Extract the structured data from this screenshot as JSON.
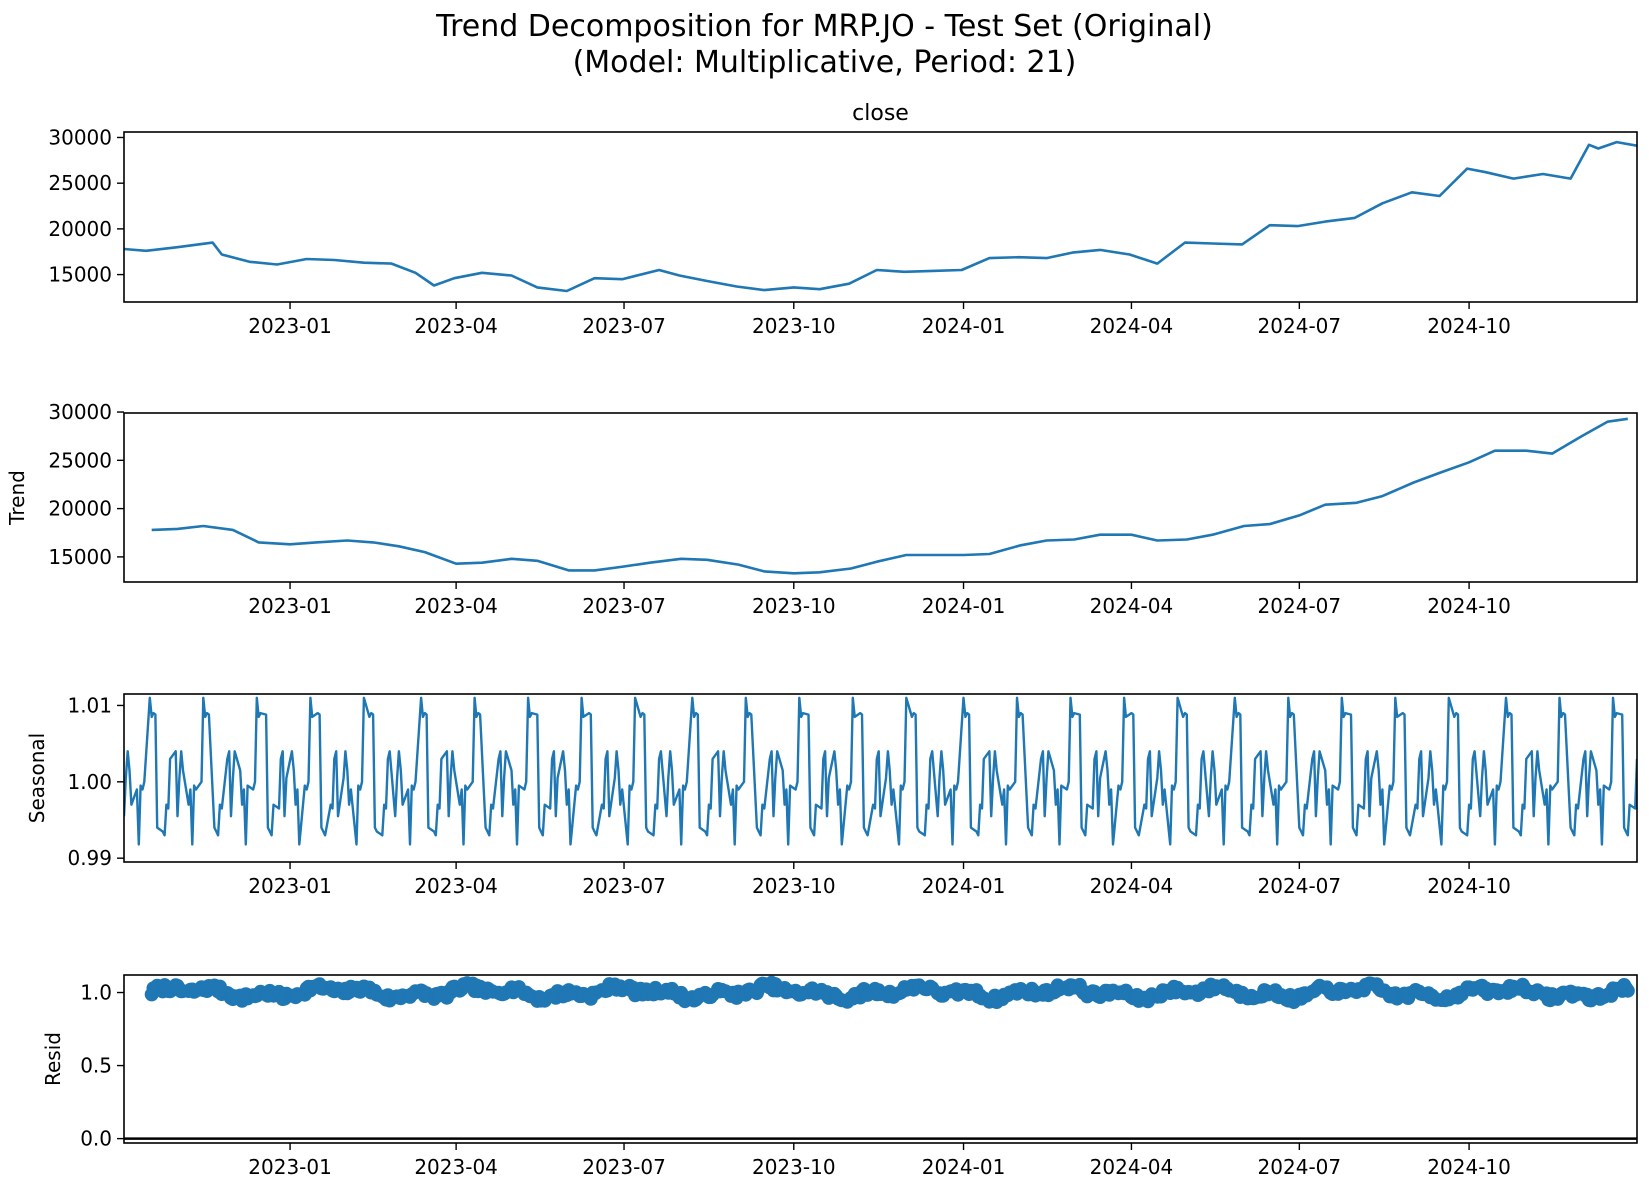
{
  "figure": {
    "title_line1": "Trend Decomposition for MRP.JO - Test Set (Original)",
    "title_line2": "(Model: Multiplicative, Period: 21)"
  },
  "chart_data": [
    {
      "type": "line",
      "panel": "observed",
      "title": "close",
      "xlabel": "",
      "ylabel": "",
      "x_ticks": [
        "2023-01",
        "2023-04",
        "2023-07",
        "2023-10",
        "2024-01",
        "2024-04",
        "2024-07",
        "2024-10"
      ],
      "y_ticks": [
        15000,
        20000,
        25000,
        30000
      ],
      "xlim": [
        "2022-10-03",
        "2024-12-31"
      ],
      "ylim": [
        12000,
        30600
      ],
      "color": "#1f77b4",
      "x": [
        "2022-10-03",
        "2022-10-15",
        "2022-11-01",
        "2022-11-20",
        "2022-11-25",
        "2022-12-10",
        "2022-12-25",
        "2023-01-10",
        "2023-01-25",
        "2023-02-10",
        "2023-02-25",
        "2023-03-10",
        "2023-03-20",
        "2023-03-31",
        "2023-04-15",
        "2023-05-01",
        "2023-05-15",
        "2023-05-31",
        "2023-06-15",
        "2023-06-30",
        "2023-07-20",
        "2023-07-31",
        "2023-08-15",
        "2023-08-31",
        "2023-09-15",
        "2023-10-01",
        "2023-10-15",
        "2023-10-31",
        "2023-11-15",
        "2023-11-30",
        "2023-12-15",
        "2023-12-31",
        "2024-01-15",
        "2024-01-31",
        "2024-02-15",
        "2024-02-29",
        "2024-03-15",
        "2024-03-31",
        "2024-04-15",
        "2024-04-30",
        "2024-05-15",
        "2024-05-31",
        "2024-06-15",
        "2024-06-30",
        "2024-07-15",
        "2024-07-31",
        "2024-08-15",
        "2024-08-31",
        "2024-09-15",
        "2024-09-30",
        "2024-10-10",
        "2024-10-25",
        "2024-11-10",
        "2024-11-25",
        "2024-12-05",
        "2024-12-10",
        "2024-12-20",
        "2024-12-31"
      ],
      "y": [
        17800,
        17600,
        18000,
        18500,
        17200,
        16400,
        16100,
        16700,
        16600,
        16300,
        16200,
        15200,
        13800,
        14600,
        15200,
        14900,
        13600,
        13200,
        14600,
        14500,
        15500,
        14900,
        14300,
        13700,
        13300,
        13600,
        13400,
        14000,
        15500,
        15300,
        15400,
        15500,
        16800,
        16900,
        16800,
        17400,
        17700,
        17200,
        16200,
        18500,
        18400,
        18300,
        20400,
        20300,
        20800,
        21200,
        22800,
        24000,
        23600,
        26600,
        26200,
        25500,
        26000,
        25500,
        29200,
        28800,
        29500,
        29100
      ]
    },
    {
      "type": "line",
      "panel": "trend",
      "title": "",
      "xlabel": "",
      "ylabel": "Trend",
      "x_ticks": [
        "2023-01",
        "2023-04",
        "2023-07",
        "2023-10",
        "2024-01",
        "2024-04",
        "2024-07",
        "2024-10"
      ],
      "y_ticks": [
        15000,
        20000,
        25000,
        30000
      ],
      "xlim": [
        "2022-10-03",
        "2024-12-31"
      ],
      "ylim": [
        12400,
        29900
      ],
      "color": "#1f77b4",
      "x": [
        "2022-10-18",
        "2022-11-01",
        "2022-11-15",
        "2022-12-01",
        "2022-12-15",
        "2023-01-01",
        "2023-01-15",
        "2023-02-01",
        "2023-02-15",
        "2023-03-01",
        "2023-03-15",
        "2023-04-01",
        "2023-04-15",
        "2023-05-01",
        "2023-05-15",
        "2023-06-01",
        "2023-06-15",
        "2023-07-01",
        "2023-07-15",
        "2023-08-01",
        "2023-08-15",
        "2023-09-01",
        "2023-09-15",
        "2023-10-01",
        "2023-10-15",
        "2023-11-01",
        "2023-11-15",
        "2023-12-01",
        "2023-12-15",
        "2024-01-01",
        "2024-01-15",
        "2024-02-01",
        "2024-02-15",
        "2024-03-01",
        "2024-03-15",
        "2024-04-01",
        "2024-04-15",
        "2024-05-01",
        "2024-05-15",
        "2024-06-01",
        "2024-06-15",
        "2024-07-01",
        "2024-07-15",
        "2024-08-01",
        "2024-08-15",
        "2024-09-01",
        "2024-09-15",
        "2024-10-01",
        "2024-10-15",
        "2024-11-01",
        "2024-11-15",
        "2024-12-01",
        "2024-12-15",
        "2024-12-26"
      ],
      "y": [
        17800,
        17900,
        18200,
        17800,
        16500,
        16300,
        16500,
        16700,
        16500,
        16100,
        15500,
        14300,
        14400,
        14800,
        14600,
        13600,
        13600,
        14000,
        14400,
        14800,
        14700,
        14200,
        13500,
        13300,
        13400,
        13800,
        14500,
        15200,
        15200,
        15200,
        15300,
        16200,
        16700,
        16800,
        17300,
        17300,
        16700,
        16800,
        17300,
        18200,
        18400,
        19300,
        20400,
        20600,
        21300,
        22700,
        23700,
        24800,
        26000,
        26000,
        25700,
        27500,
        29000,
        29300
      ]
    },
    {
      "type": "line",
      "panel": "seasonal",
      "title": "",
      "xlabel": "",
      "ylabel": "Seasonal",
      "x_ticks": [
        "2023-01",
        "2023-04",
        "2023-07",
        "2023-10",
        "2024-01",
        "2024-04",
        "2024-07",
        "2024-10"
      ],
      "y_ticks": [
        0.99,
        1.0,
        1.01
      ],
      "y_tick_labels": [
        "0.99",
        "1.00",
        "1.01"
      ],
      "xlim": [
        "2022-10-03",
        "2024-12-31"
      ],
      "ylim": [
        0.9895,
        1.0115
      ],
      "period_trading_days": 21,
      "start": "2022-10-03",
      "end": "2024-12-31",
      "color": "#1f77b4",
      "one_period": [
        0.9955,
        1.0005,
        1.004,
        1.0015,
        0.997,
        0.999,
        0.9918,
        0.9995,
        0.999,
        1.0,
        1.011,
        1.0085,
        1.009,
        1.0088,
        0.994,
        0.9935,
        0.993,
        0.997,
        0.9965,
        1.003,
        1.004
      ]
    },
    {
      "type": "scatter",
      "panel": "resid",
      "title": "",
      "xlabel": "",
      "ylabel": "Resid",
      "x_ticks": [
        "2023-01",
        "2023-04",
        "2023-07",
        "2023-10",
        "2024-01",
        "2024-04",
        "2024-07",
        "2024-10"
      ],
      "y_ticks": [
        0.0,
        0.5,
        1.0
      ],
      "y_tick_labels": [
        "0.0",
        "0.5",
        "1.0"
      ],
      "xlim": [
        "2022-10-03",
        "2024-12-31"
      ],
      "ylim": [
        -0.03,
        1.12
      ],
      "baseline": 0.0,
      "start": "2022-10-18",
      "end": "2024-12-26",
      "color": "#1f77b4",
      "values_approx": "mostly between 0.93 and 1.07, centered near 1.0"
    }
  ]
}
